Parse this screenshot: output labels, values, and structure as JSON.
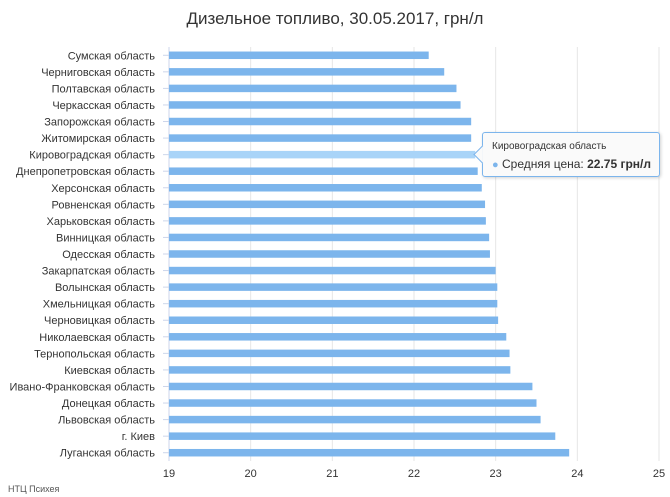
{
  "chart_data": {
    "type": "bar",
    "orientation": "horizontal",
    "title": "Дизельное топливо, 30.05.2017, грн/л",
    "categories": [
      "Сумская область",
      "Черниговская область",
      "Полтавская область",
      "Черкасская область",
      "Запорожская область",
      "Житомирская область",
      "Кировоградская область",
      "Днепропетровская область",
      "Херсонская область",
      "Ровненская область",
      "Харьковская область",
      "Винницкая область",
      "Одесская область",
      "Закарпатская область",
      "Волынская область",
      "Хмельницкая область",
      "Черновицкая область",
      "Николаевская область",
      "Тернопольская область",
      "Киевская область",
      "Ивано-Франковская область",
      "Донецкая область",
      "Львовская область",
      "г. Киев",
      "Луганская область"
    ],
    "series": [
      {
        "name": "Средняя цена",
        "values": [
          22.18,
          22.37,
          22.52,
          22.57,
          22.7,
          22.7,
          22.75,
          22.78,
          22.83,
          22.87,
          22.88,
          22.92,
          22.93,
          23.0,
          23.02,
          23.02,
          23.03,
          23.13,
          23.17,
          23.18,
          23.45,
          23.5,
          23.55,
          23.73,
          23.9
        ]
      }
    ],
    "xlim": [
      19,
      25
    ],
    "xticks": [
      "19",
      "20",
      "21",
      "22",
      "23",
      "24",
      "25"
    ],
    "highlight_index": 6,
    "colors": {
      "bar": "#7cb5ec",
      "bar_highlight": "#a9d4f8",
      "grid": "#e6e6e6",
      "axis": "#ccd6eb"
    },
    "grid": true,
    "legend": "none"
  },
  "tooltip": {
    "category": "Кировоградская область",
    "series_label": "Средняя цена: ",
    "value_text": "22.75 грн/л",
    "marker": "●"
  },
  "credit": "НТЦ Психея"
}
